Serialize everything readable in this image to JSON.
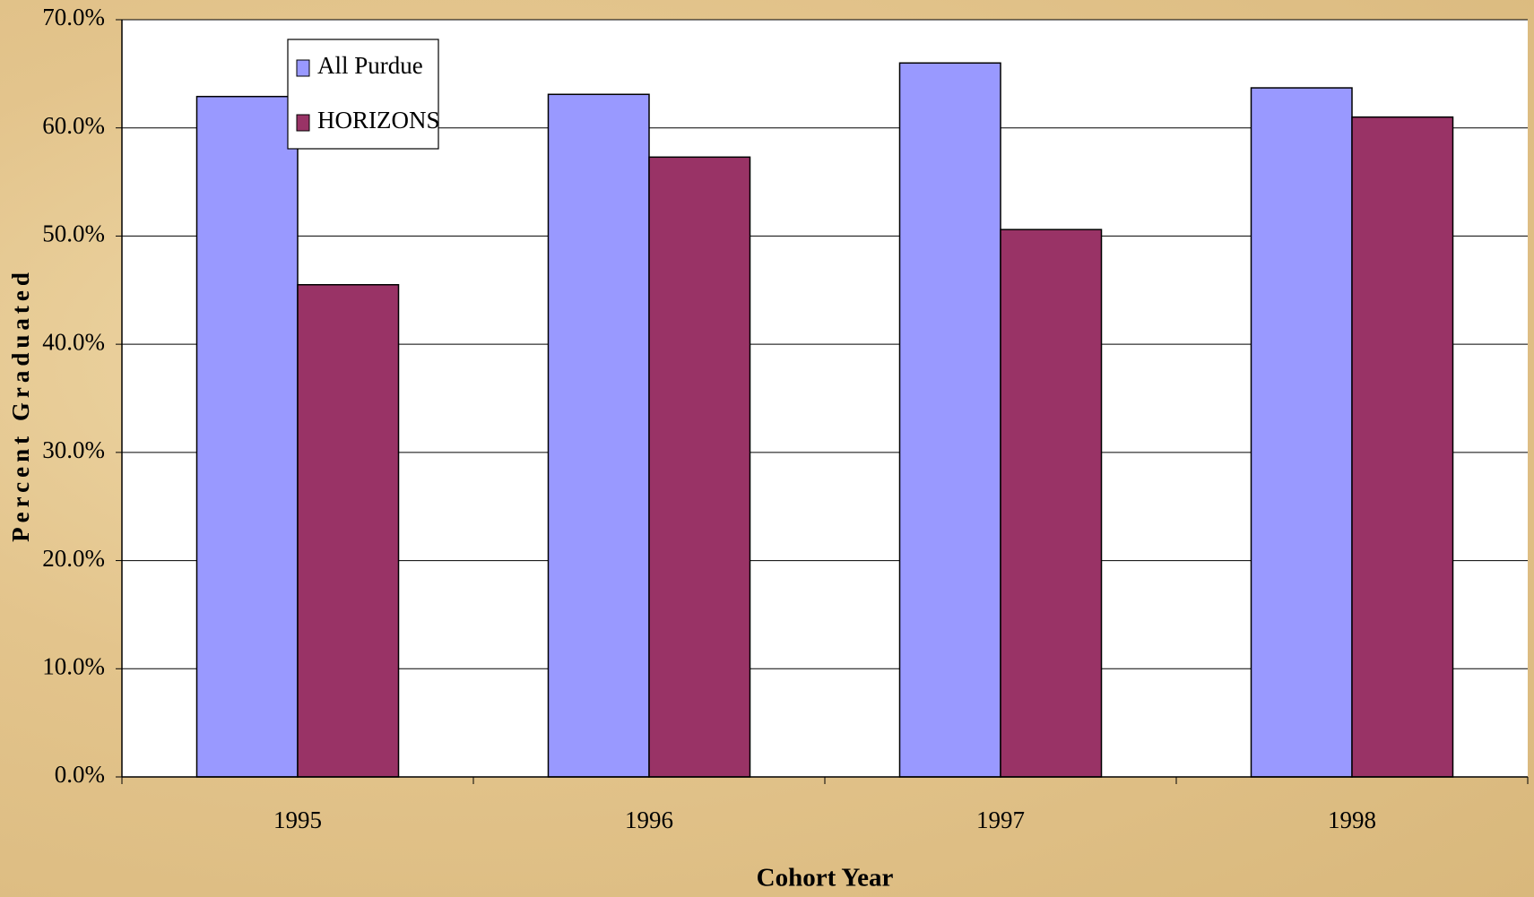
{
  "chart_data": {
    "type": "bar",
    "xlabel": "Cohort Year",
    "ylabel": "Percent Graduated",
    "categories": [
      "1995",
      "1996",
      "1997",
      "1998"
    ],
    "series": [
      {
        "name": "All Purdue",
        "color": "#9999ff",
        "values": [
          62.9,
          63.1,
          66.0,
          63.7
        ]
      },
      {
        "name": "HORIZONS",
        "color": "#993366",
        "values": [
          45.5,
          57.3,
          50.6,
          61.0
        ]
      }
    ],
    "ylim": [
      0,
      70
    ],
    "yticks": [
      {
        "value": 0,
        "label": "0.0%"
      },
      {
        "value": 10,
        "label": "10.0%"
      },
      {
        "value": 20,
        "label": "20.0%"
      },
      {
        "value": 30,
        "label": "30.0%"
      },
      {
        "value": 40,
        "label": "40.0%"
      },
      {
        "value": 50,
        "label": "50.0%"
      },
      {
        "value": 60,
        "label": "60.0%"
      },
      {
        "value": 70,
        "label": "70.0%"
      }
    ],
    "grid": true
  }
}
